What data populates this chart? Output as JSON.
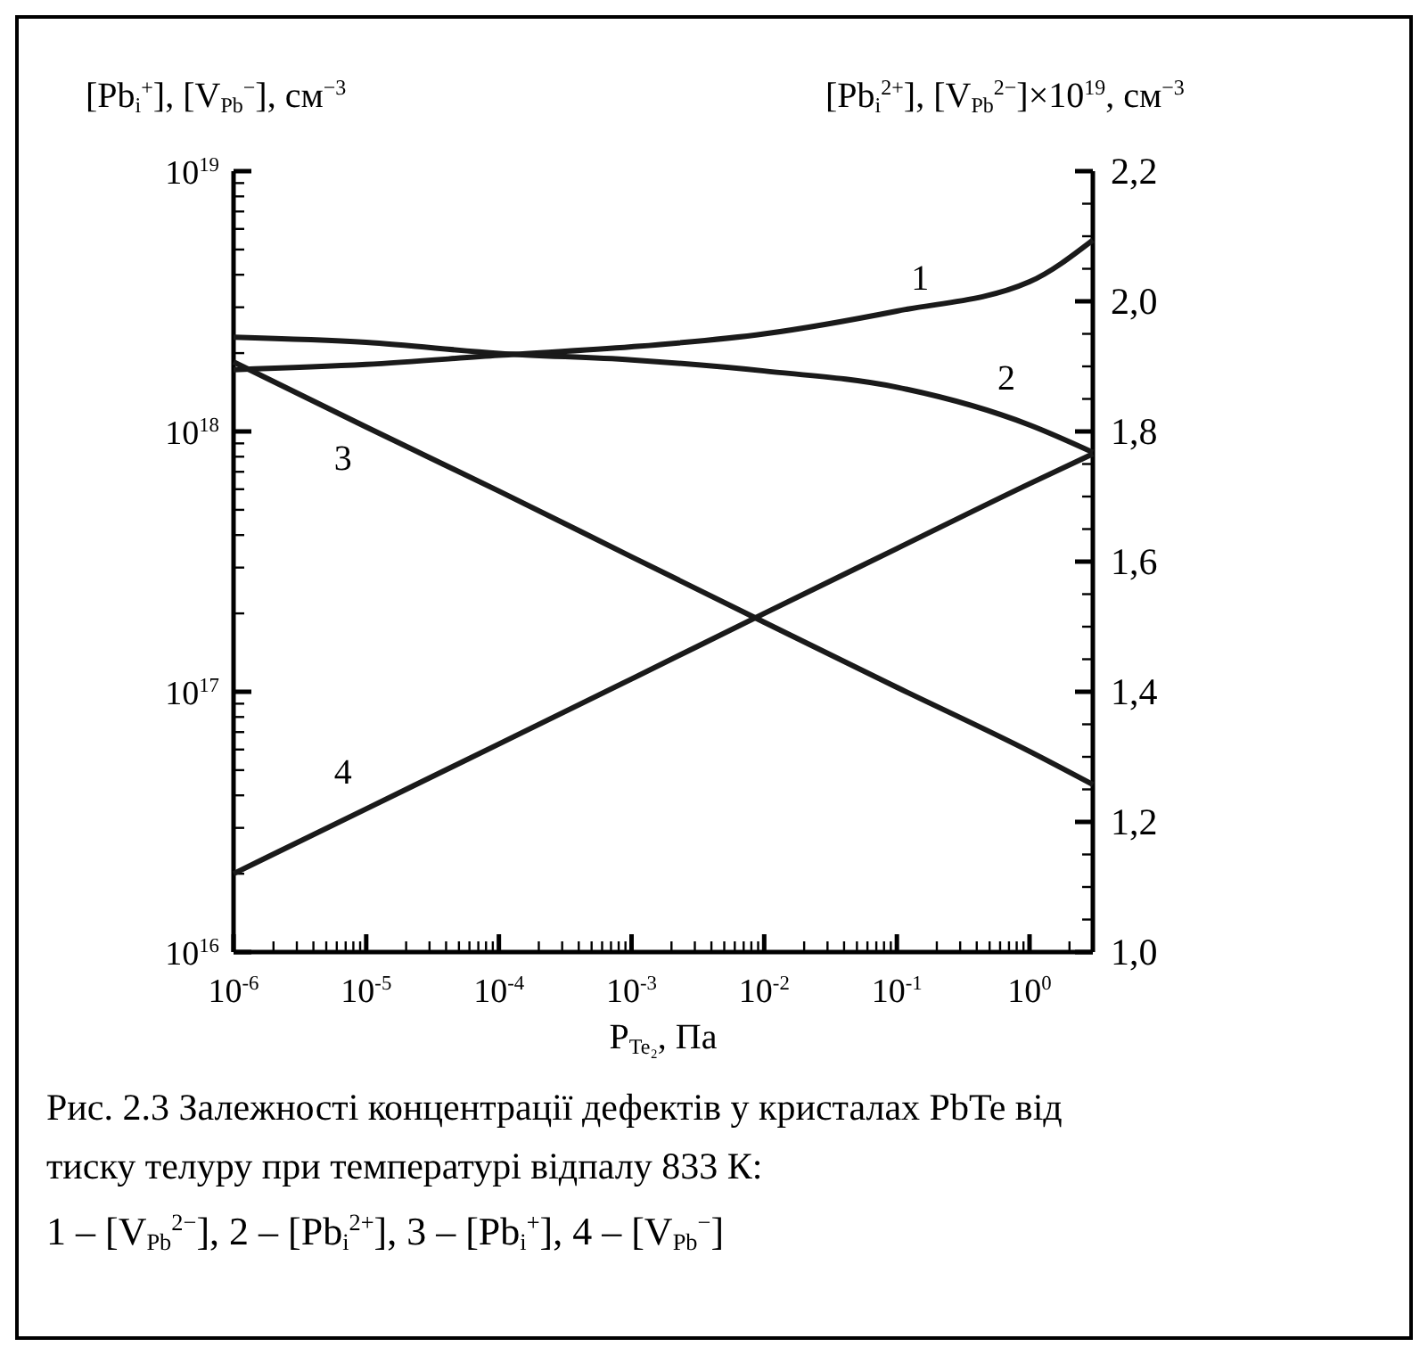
{
  "chart_data": {
    "type": "line",
    "log": "xy",
    "xlabel": "P$_{Te₂}$, Па",
    "ylabel": "[Pb$_{i}$$^{+}$], [V$_{Pb}$$^{−}$], см$^{−3}$",
    "y2label": "[Pb$_{i}$$^{2+}$], [V$_{Pb}$$^{2−}$]×10$^{19}$, см$^{−3}$",
    "xlim": [
      1e-06,
      3
    ],
    "ylim": [
      1e+16,
      1e+19
    ],
    "y2lim": [
      1.0,
      2.2
    ],
    "xticks": [
      {
        "value": 1e-06,
        "label": "10$^{-6}$"
      },
      {
        "value": 2e-06,
        "label": null
      },
      {
        "value": 3e-06,
        "label": null
      },
      {
        "value": 4e-06,
        "label": null
      },
      {
        "value": 5e-06,
        "label": null
      },
      {
        "value": 6e-06,
        "label": null
      },
      {
        "value": 7e-06,
        "label": null
      },
      {
        "value": 8e-06,
        "label": null
      },
      {
        "value": 9e-06,
        "label": null
      },
      {
        "value": 1e-05,
        "label": "10$^{-5}$"
      },
      {
        "value": 2e-05,
        "label": null
      },
      {
        "value": 3e-05,
        "label": null
      },
      {
        "value": 4e-05,
        "label": null
      },
      {
        "value": 5e-05,
        "label": null
      },
      {
        "value": 6e-05,
        "label": null
      },
      {
        "value": 7e-05,
        "label": null
      },
      {
        "value": 8e-05,
        "label": null
      },
      {
        "value": 9e-05,
        "label": null
      },
      {
        "value": 0.0001,
        "label": "10$^{-4}$"
      },
      {
        "value": 0.0002,
        "label": null
      },
      {
        "value": 0.0003,
        "label": null
      },
      {
        "value": 0.0004,
        "label": null
      },
      {
        "value": 0.0005,
        "label": null
      },
      {
        "value": 0.0006,
        "label": null
      },
      {
        "value": 0.0007,
        "label": null
      },
      {
        "value": 0.0008,
        "label": null
      },
      {
        "value": 0.0009,
        "label": null
      },
      {
        "value": 0.001,
        "label": "10$^{-3}$"
      },
      {
        "value": 0.002,
        "label": null
      },
      {
        "value": 0.003,
        "label": null
      },
      {
        "value": 0.004,
        "label": null
      },
      {
        "value": 0.005,
        "label": null
      },
      {
        "value": 0.006,
        "label": null
      },
      {
        "value": 0.007,
        "label": null
      },
      {
        "value": 0.008,
        "label": null
      },
      {
        "value": 0.009,
        "label": null
      },
      {
        "value": 0.01,
        "label": "10$^{-2}$"
      },
      {
        "value": 0.02,
        "label": null
      },
      {
        "value": 0.03,
        "label": null
      },
      {
        "value": 0.04,
        "label": null
      },
      {
        "value": 0.05,
        "label": null
      },
      {
        "value": 0.06,
        "label": null
      },
      {
        "value": 0.07,
        "label": null
      },
      {
        "value": 0.08,
        "label": null
      },
      {
        "value": 0.09,
        "label": null
      },
      {
        "value": 0.1,
        "label": "10$^{-1}$"
      },
      {
        "value": 0.2,
        "label": null
      },
      {
        "value": 0.3,
        "label": null
      },
      {
        "value": 0.4,
        "label": null
      },
      {
        "value": 0.5,
        "label": null
      },
      {
        "value": 0.6,
        "label": null
      },
      {
        "value": 0.7,
        "label": null
      },
      {
        "value": 0.8,
        "label": null
      },
      {
        "value": 0.9,
        "label": null
      },
      {
        "value": 1,
        "label": "10$^{0}$"
      },
      {
        "value": 2,
        "label": null
      },
      {
        "value": 3,
        "label": null
      }
    ],
    "yticks": [
      {
        "value": 1e+16,
        "label": "10$^{16}$"
      },
      {
        "value": 2e+16,
        "label": null
      },
      {
        "value": 3e+16,
        "label": null
      },
      {
        "value": 4e+16,
        "label": null
      },
      {
        "value": 5e+16,
        "label": null
      },
      {
        "value": 6e+16,
        "label": null
      },
      {
        "value": 7e+16,
        "label": null
      },
      {
        "value": 8e+16,
        "label": null
      },
      {
        "value": 9e+16,
        "label": null
      },
      {
        "value": 1e+17,
        "label": "10$^{17}$"
      },
      {
        "value": 2e+17,
        "label": null
      },
      {
        "value": 3e+17,
        "label": null
      },
      {
        "value": 4e+17,
        "label": null
      },
      {
        "value": 5e+17,
        "label": null
      },
      {
        "value": 6e+17,
        "label": null
      },
      {
        "value": 7e+17,
        "label": null
      },
      {
        "value": 8e+17,
        "label": null
      },
      {
        "value": 9e+17,
        "label": null
      },
      {
        "value": 1e+18,
        "label": "10$^{18}$"
      },
      {
        "value": 2e+18,
        "label": null
      },
      {
        "value": 3e+18,
        "label": null
      },
      {
        "value": 4e+18,
        "label": null
      },
      {
        "value": 5e+18,
        "label": null
      },
      {
        "value": 6e+18,
        "label": null
      },
      {
        "value": 7e+18,
        "label": null
      },
      {
        "value": 8e+18,
        "label": null
      },
      {
        "value": 9e+18,
        "label": null
      },
      {
        "value": 1e+19,
        "label": "10$^{19}$"
      }
    ],
    "y2ticks": [
      {
        "value": 1.0,
        "label": "1,0"
      },
      {
        "value": 1.05,
        "label": null
      },
      {
        "value": 1.1,
        "label": null
      },
      {
        "value": 1.15,
        "label": null
      },
      {
        "value": 1.2,
        "label": "1,2"
      },
      {
        "value": 1.25,
        "label": null
      },
      {
        "value": 1.3,
        "label": null
      },
      {
        "value": 1.35,
        "label": null
      },
      {
        "value": 1.4,
        "label": "1,4"
      },
      {
        "value": 1.45,
        "label": null
      },
      {
        "value": 1.5,
        "label": null
      },
      {
        "value": 1.55,
        "label": null
      },
      {
        "value": 1.6,
        "label": "1,6"
      },
      {
        "value": 1.65,
        "label": null
      },
      {
        "value": 1.7,
        "label": null
      },
      {
        "value": 1.75,
        "label": null
      },
      {
        "value": 1.8,
        "label": "1,8"
      },
      {
        "value": 1.85,
        "label": null
      },
      {
        "value": 1.9,
        "label": null
      },
      {
        "value": 1.95,
        "label": null
      },
      {
        "value": 2.0,
        "label": "2,0"
      },
      {
        "value": 2.05,
        "label": null
      },
      {
        "value": 2.1,
        "label": null
      },
      {
        "value": 2.15,
        "label": null
      },
      {
        "value": 2.2,
        "label": "2,2"
      }
    ],
    "x": [
      1e-06,
      1e-05,
      0.0001,
      0.001,
      0.01,
      0.1,
      1,
      3
    ],
    "line_style": "solid",
    "marker": "none",
    "series": [
      {
        "name": "1",
        "axis": "y2",
        "color": "#1a1a1a",
        "values": [
          1.895,
          1.903,
          1.917,
          1.93,
          1.95,
          1.985,
          2.03,
          2.094
        ]
      },
      {
        "name": "2",
        "axis": "y2",
        "color": "#1a1a1a",
        "values": [
          1.945,
          1.937,
          1.92,
          1.91,
          1.893,
          1.868,
          1.81,
          1.768
        ]
      },
      {
        "name": "3",
        "color": "#1a1a1a",
        "values": [
          1.85e+18,
          1.04e+18,
          5.9e+17,
          3.3e+17,
          1.85e+17,
          1.04e+17,
          5.9e+16,
          4.4e+16
        ]
      },
      {
        "name": "4",
        "color": "#1a1a1a",
        "values": [
          2e+16,
          3.55e+16,
          6.3e+16,
          1.12e+17,
          2e+17,
          3.55e+17,
          6.3e+17,
          8.2e+17
        ]
      }
    ],
    "annotations": [
      "Рис. 2.3  Залежності концентрації дефектів у кристалах PbTe від",
      "тиску телуру при температурі відпалу 833 К:",
      "1 – [V$_{Pb}$$^{2−}$], 2 – [Pb$_{i}$$^{2+}$], 3 – [Pb$_{i}$$^{+}$], 4 – [V$_{Pb}$$^{−}$]"
    ]
  }
}
